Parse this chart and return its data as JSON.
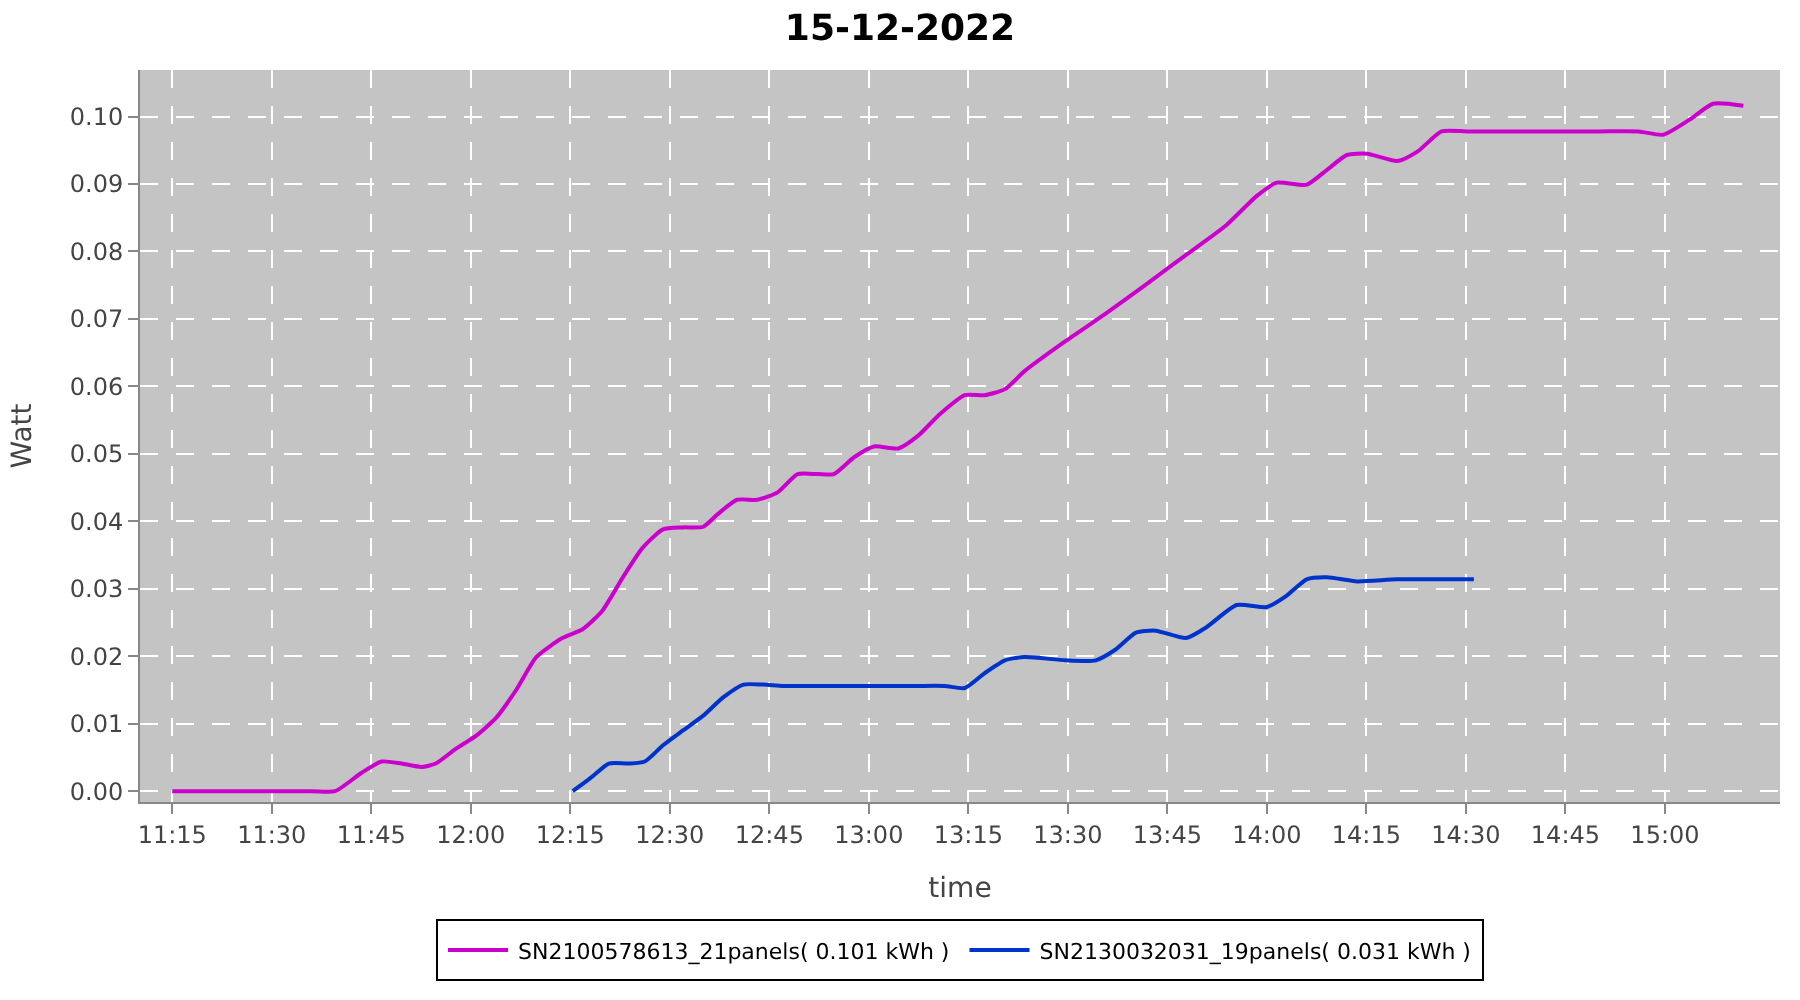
{
  "chart_data": {
    "type": "line",
    "title": "15-12-2022",
    "xlabel": "time",
    "ylabel": "Watt",
    "xlim": [
      11.169,
      15.289
    ],
    "ylim": [
      -0.0016,
      0.1069
    ],
    "xticks": [
      {
        "value": 11.25,
        "label": "11:15"
      },
      {
        "value": 11.5,
        "label": "11:30"
      },
      {
        "value": 11.75,
        "label": "11:45"
      },
      {
        "value": 12,
        "label": "12:00"
      },
      {
        "value": 12.25,
        "label": "12:15"
      },
      {
        "value": 12.5,
        "label": "12:30"
      },
      {
        "value": 12.75,
        "label": "12:45"
      },
      {
        "value": 13,
        "label": "13:00"
      },
      {
        "value": 13.25,
        "label": "13:15"
      },
      {
        "value": 13.5,
        "label": "13:30"
      },
      {
        "value": 13.75,
        "label": "13:45"
      },
      {
        "value": 14,
        "label": "14:00"
      },
      {
        "value": 14.25,
        "label": "14:15"
      },
      {
        "value": 14.5,
        "label": "14:30"
      },
      {
        "value": 14.75,
        "label": "14:45"
      },
      {
        "value": 15,
        "label": "15:00"
      }
    ],
    "yticks": [
      {
        "value": 0,
        "label": "0.00"
      },
      {
        "value": 0.01,
        "label": "0.01"
      },
      {
        "value": 0.02,
        "label": "0.02"
      },
      {
        "value": 0.03,
        "label": "0.03"
      },
      {
        "value": 0.04,
        "label": "0.04"
      },
      {
        "value": 0.05,
        "label": "0.05"
      },
      {
        "value": 0.06,
        "label": "0.06"
      },
      {
        "value": 0.07,
        "label": "0.07"
      },
      {
        "value": 0.08,
        "label": "0.08"
      },
      {
        "value": 0.09,
        "label": "0.09"
      },
      {
        "value": 0.1,
        "label": "0.10"
      }
    ],
    "grid": true,
    "legend": "bottom",
    "marker": "none",
    "line_style": "solid",
    "series": [
      {
        "name": "SN2100578613_21panels( 0.101 kWh )",
        "color": "#cc00cc",
        "x": [
          11.25,
          11.6,
          11.659,
          11.725,
          11.776,
          11.826,
          11.877,
          11.912,
          11.963,
          12.013,
          12.064,
          12.114,
          12.165,
          12.23,
          12.281,
          12.331,
          12.382,
          12.432,
          12.483,
          12.533,
          12.584,
          12.619,
          12.669,
          12.72,
          12.771,
          12.821,
          12.872,
          12.912,
          12.963,
          13.013,
          13.074,
          13.124,
          13.175,
          13.241,
          13.291,
          13.342,
          13.392,
          13.494,
          13.595,
          13.696,
          13.797,
          13.898,
          13.974,
          14.025,
          14.1,
          14.151,
          14.201,
          14.252,
          14.328,
          14.378,
          14.439,
          14.504,
          14.631,
          14.833,
          14.934,
          14.995,
          15.061,
          15.121,
          15.197
        ],
        "values": [
          0,
          0,
          0,
          0.0027,
          0.0044,
          0.0041,
          0.0036,
          0.0041,
          0.0063,
          0.0082,
          0.0109,
          0.015,
          0.0199,
          0.0227,
          0.024,
          0.0268,
          0.0317,
          0.0361,
          0.0388,
          0.0391,
          0.0392,
          0.041,
          0.0432,
          0.0432,
          0.0443,
          0.047,
          0.047,
          0.047,
          0.0495,
          0.0511,
          0.0508,
          0.0527,
          0.0557,
          0.0587,
          0.0587,
          0.0596,
          0.0623,
          0.0667,
          0.0708,
          0.0751,
          0.0795,
          0.0839,
          0.0882,
          0.0902,
          0.0899,
          0.0921,
          0.0943,
          0.0945,
          0.0934,
          0.0948,
          0.0978,
          0.0978,
          0.0978,
          0.0978,
          0.0978,
          0.0973,
          0.0995,
          0.1019,
          0.1016
        ]
      },
      {
        "name": "SN2130032031_19panels( 0.031 kWh )",
        "color": "#0033cc",
        "x": [
          12.256,
          12.306,
          12.347,
          12.397,
          12.437,
          12.483,
          12.533,
          12.584,
          12.634,
          12.685,
          12.735,
          12.786,
          12.912,
          13.114,
          13.19,
          13.241,
          13.291,
          13.342,
          13.392,
          13.494,
          13.57,
          13.62,
          13.671,
          13.721,
          13.797,
          13.848,
          13.924,
          14.0,
          14.05,
          14.1,
          14.151,
          14.227,
          14.328,
          14.52
        ],
        "values": [
          0,
          0.0022,
          0.0041,
          0.0041,
          0.0044,
          0.0068,
          0.009,
          0.0112,
          0.0139,
          0.0158,
          0.0158,
          0.0156,
          0.0156,
          0.0156,
          0.0156,
          0.0153,
          0.0175,
          0.0194,
          0.0199,
          0.0194,
          0.0194,
          0.021,
          0.0235,
          0.0238,
          0.0227,
          0.0243,
          0.0276,
          0.0273,
          0.029,
          0.0314,
          0.0317,
          0.0311,
          0.0314,
          0.0314
        ]
      }
    ]
  }
}
